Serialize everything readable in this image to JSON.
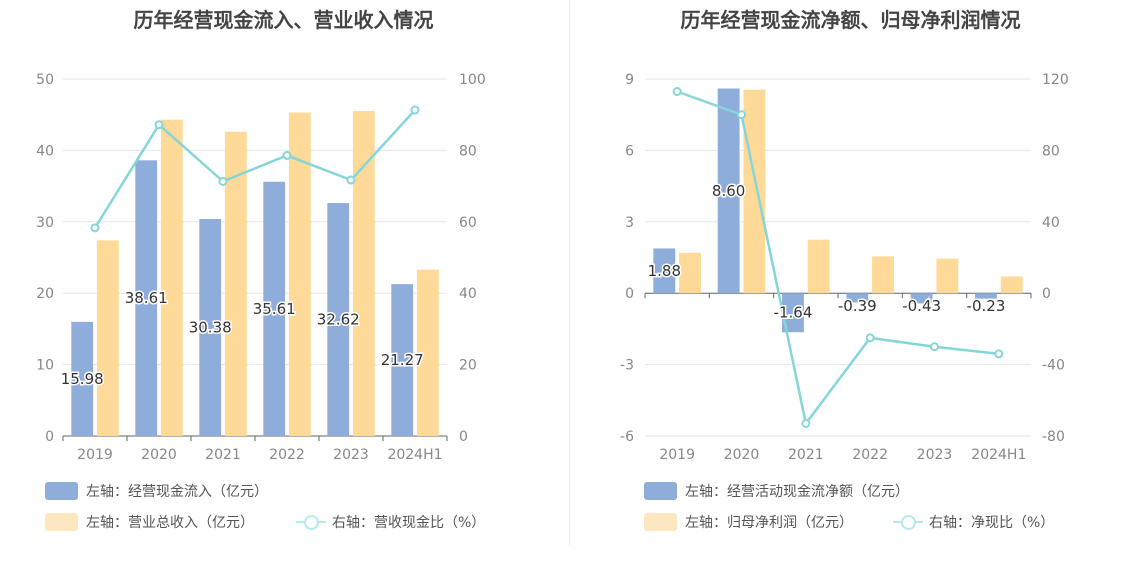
{
  "charts": [
    {
      "title": "历年经营现金流入、营业收入情况",
      "legend": [
        {
          "label": "左轴：经营现金流入（亿元）",
          "kind": "bar",
          "color": "#8eaddb"
        },
        {
          "label": "左轴：营业总收入（亿元）",
          "kind": "bar",
          "color": "#fde7c0"
        },
        {
          "label": "右轴：营收现金比（%）",
          "kind": "line",
          "color": "#b7e8ea"
        }
      ]
    },
    {
      "title": "历年经营现金流净额、归母净利润情况",
      "legend": [
        {
          "label": "左轴：经营活动现金流净额（亿元）",
          "kind": "bar",
          "color": "#8eaddb"
        },
        {
          "label": "左轴：归母净利润（亿元）",
          "kind": "bar",
          "color": "#fde7c0"
        },
        {
          "label": "右轴：净现比（%）",
          "kind": "line",
          "color": "#b7e8ea"
        }
      ]
    }
  ],
  "chart_data": [
    {
      "type": "bar",
      "title": "历年经营现金流入、营业收入情况",
      "categories": [
        "2019",
        "2020",
        "2021",
        "2022",
        "2023",
        "2024H1"
      ],
      "y_left": {
        "min": 0,
        "max": 50,
        "ticks": [
          0,
          10,
          20,
          30,
          40,
          50
        ]
      },
      "y_right": {
        "min": 0,
        "max": 100,
        "ticks": [
          0,
          20,
          40,
          60,
          80,
          100
        ]
      },
      "grid": true,
      "legend_position": "bottom-left",
      "series": [
        {
          "name": "左轴：经营现金流入（亿元）",
          "type": "bar",
          "axis": "left",
          "color": "#8eaddb",
          "values": [
            15.98,
            38.61,
            30.38,
            35.61,
            32.62,
            21.27
          ],
          "show_labels": true
        },
        {
          "name": "左轴：营业总收入（亿元）",
          "type": "bar",
          "axis": "left",
          "color": "#ffd998",
          "values": [
            27.4,
            44.3,
            42.6,
            45.3,
            45.5,
            23.3
          ],
          "show_labels": false
        },
        {
          "name": "右轴：营收现金比（%）",
          "type": "line",
          "axis": "right",
          "color": "#86d6d9",
          "values": [
            58.3,
            87.2,
            71.3,
            78.6,
            71.7,
            91.3
          ]
        }
      ]
    },
    {
      "type": "bar",
      "title": "历年经营现金流净额、归母净利润情况",
      "categories": [
        "2019",
        "2020",
        "2021",
        "2022",
        "2023",
        "2024H1"
      ],
      "y_left": {
        "min": -6,
        "max": 9,
        "ticks": [
          -6,
          -3,
          0,
          3,
          6,
          9
        ]
      },
      "y_right": {
        "min": -80,
        "max": 120,
        "ticks": [
          -80,
          -40,
          0,
          40,
          80,
          120
        ]
      },
      "grid": true,
      "legend_position": "bottom-left",
      "series": [
        {
          "name": "左轴：经营活动现金流净额（亿元）",
          "type": "bar",
          "axis": "left",
          "color": "#8eaddb",
          "values": [
            1.88,
            8.6,
            -1.64,
            -0.39,
            -0.43,
            -0.23
          ],
          "show_labels": true
        },
        {
          "name": "左轴：归母净利润（亿元）",
          "type": "bar",
          "axis": "left",
          "color": "#ffd998",
          "values": [
            1.7,
            8.55,
            2.25,
            1.55,
            1.45,
            0.7
          ],
          "show_labels": false
        },
        {
          "name": "右轴：净现比（%）",
          "type": "line",
          "axis": "right",
          "color": "#86d6d9",
          "values": [
            113,
            100,
            -73,
            -25,
            -30,
            -34
          ]
        }
      ]
    }
  ]
}
